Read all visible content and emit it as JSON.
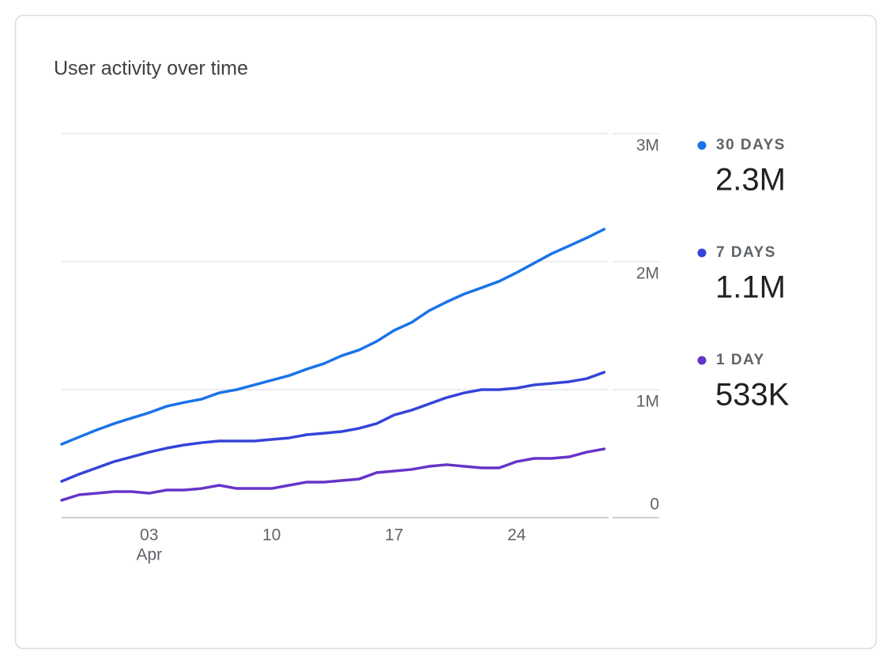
{
  "chart_data": {
    "type": "line",
    "title": "User activity over time",
    "categories": [
      null,
      null,
      null,
      null,
      null,
      "03",
      null,
      null,
      null,
      null,
      null,
      null,
      "10",
      null,
      null,
      null,
      null,
      null,
      null,
      "17",
      null,
      null,
      null,
      null,
      null,
      null,
      "24",
      null,
      null,
      null,
      null,
      null
    ],
    "month_label": "Apr",
    "ylim": [
      0,
      3000000
    ],
    "yticks": [
      {
        "value": 0,
        "label": "0"
      },
      {
        "value": 1000000,
        "label": "1M"
      },
      {
        "value": 2000000,
        "label": "2M"
      },
      {
        "value": 3000000,
        "label": "3M"
      }
    ],
    "grid": true,
    "legend": "right",
    "series": [
      {
        "name": "30 DAYS",
        "color": "#1a73e8",
        "summary_value": 2300000,
        "summary_label": "2.3M",
        "values": [
          574000,
          630000,
          685000,
          735000,
          778000,
          820000,
          870000,
          900000,
          926000,
          975000,
          1000000,
          1037000,
          1074000,
          1110000,
          1160000,
          1204000,
          1265000,
          1310000,
          1377000,
          1463000,
          1525000,
          1617000,
          1685000,
          1747000,
          1796000,
          1846000,
          1914000,
          1988000,
          2062000,
          2123000,
          2185000,
          2253000
        ]
      },
      {
        "name": "7 DAYS",
        "color": "#3444d8",
        "summary_value": 1100000,
        "summary_label": "1.1M",
        "values": [
          284000,
          340000,
          389000,
          438000,
          475000,
          512000,
          543000,
          568000,
          586000,
          599000,
          599000,
          599000,
          611000,
          623000,
          648000,
          660000,
          673000,
          698000,
          735000,
          802000,
          840000,
          889000,
          938000,
          975000,
          1000000,
          1000000,
          1012000,
          1037000,
          1049000,
          1062000,
          1086000,
          1136000
        ]
      },
      {
        "name": "1 DAY",
        "color": "#6634c8",
        "summary_value": 533000,
        "summary_label": "533K",
        "values": [
          136000,
          179000,
          191000,
          204000,
          204000,
          191000,
          216000,
          216000,
          228000,
          253000,
          228000,
          228000,
          228000,
          253000,
          278000,
          278000,
          290000,
          302000,
          352000,
          364000,
          377000,
          401000,
          414000,
          401000,
          389000,
          389000,
          438000,
          463000,
          463000,
          475000,
          512000,
          537000
        ]
      }
    ]
  }
}
